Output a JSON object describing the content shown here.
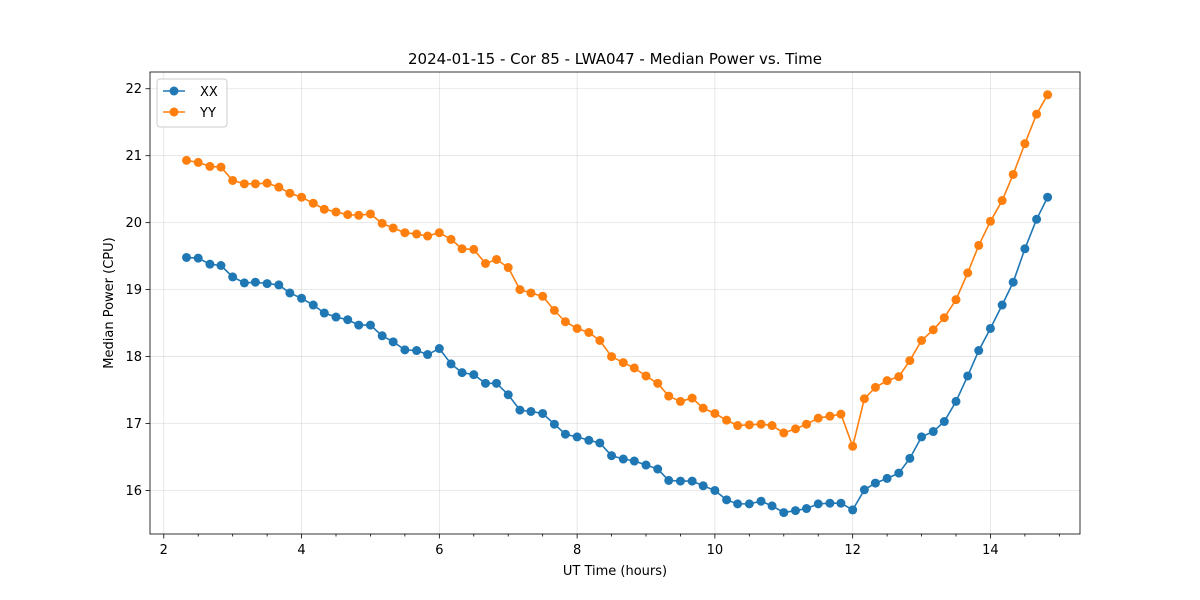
{
  "chart_data": {
    "type": "line",
    "title": "2024-01-15 - Cor 85 - LWA047 - Median Power vs. Time",
    "xlabel": "UT Time (hours)",
    "ylabel": "Median Power (CPU)",
    "xlim": [
      1.8,
      15.3
    ],
    "ylim": [
      15.35,
      22.25
    ],
    "xticks": [
      2,
      4,
      6,
      8,
      10,
      12,
      14
    ],
    "yticks": [
      16,
      17,
      18,
      19,
      20,
      21,
      22
    ],
    "xminor": [
      2.5,
      3,
      3.5,
      4.5,
      5,
      5.5,
      6.5,
      7,
      7.5,
      8.5,
      9,
      9.5,
      10.5,
      11,
      11.5,
      12.5,
      13,
      13.5,
      14.5,
      15
    ],
    "grid": true,
    "legend_position": "top-left",
    "x": [
      2.33,
      2.5,
      2.67,
      2.83,
      3.0,
      3.17,
      3.33,
      3.5,
      3.67,
      3.83,
      4.0,
      4.17,
      4.33,
      4.5,
      4.67,
      4.83,
      5.0,
      5.17,
      5.33,
      5.5,
      5.67,
      5.83,
      6.0,
      6.17,
      6.33,
      6.5,
      6.67,
      6.83,
      7.0,
      7.17,
      7.33,
      7.5,
      7.67,
      7.83,
      8.0,
      8.17,
      8.33,
      8.5,
      8.67,
      8.83,
      9.0,
      9.17,
      9.33,
      9.5,
      9.67,
      9.83,
      10.0,
      10.17,
      10.33,
      10.5,
      10.67,
      10.83,
      11.0,
      11.17,
      11.33,
      11.5,
      11.67,
      11.83,
      12.0,
      12.17,
      12.33,
      12.5,
      12.67,
      12.83,
      13.0,
      13.17,
      13.33,
      13.5,
      13.67,
      13.83,
      14.0,
      14.17,
      14.33,
      14.5,
      14.67,
      14.83
    ],
    "series": [
      {
        "name": "XX",
        "color": "#1f77b4",
        "values": [
          19.48,
          19.47,
          19.38,
          19.36,
          19.19,
          19.1,
          19.11,
          19.09,
          19.07,
          18.95,
          18.87,
          18.77,
          18.65,
          18.59,
          18.55,
          18.47,
          18.47,
          18.31,
          18.22,
          18.1,
          18.09,
          18.03,
          18.12,
          17.89,
          17.76,
          17.73,
          17.6,
          17.6,
          17.43,
          17.2,
          17.18,
          17.15,
          16.99,
          16.84,
          16.8,
          16.75,
          16.71,
          16.52,
          16.47,
          16.44,
          16.38,
          16.32,
          16.15,
          16.14,
          16.14,
          16.07,
          16.0,
          15.86,
          15.8,
          15.8,
          15.84,
          15.77,
          15.67,
          15.7,
          15.73,
          15.8,
          15.81,
          15.81,
          15.71,
          16.01,
          16.11,
          16.18,
          16.26,
          16.48,
          16.8,
          16.88,
          17.03,
          17.33,
          17.71,
          18.09,
          18.42,
          18.77,
          19.11,
          19.61,
          20.05,
          20.38
        ]
      },
      {
        "name": "YY",
        "color": "#ff7f0e",
        "values": [
          20.93,
          20.9,
          20.84,
          20.83,
          20.63,
          20.58,
          20.58,
          20.59,
          20.53,
          20.44,
          20.38,
          20.29,
          20.2,
          20.16,
          20.12,
          20.11,
          20.13,
          19.99,
          19.92,
          19.85,
          19.83,
          19.8,
          19.85,
          19.75,
          19.61,
          19.6,
          19.39,
          19.45,
          19.33,
          19.0,
          18.95,
          18.9,
          18.69,
          18.52,
          18.42,
          18.36,
          18.24,
          18.0,
          17.91,
          17.83,
          17.71,
          17.6,
          17.41,
          17.33,
          17.38,
          17.23,
          17.15,
          17.05,
          16.97,
          16.98,
          16.99,
          16.97,
          16.86,
          16.92,
          16.99,
          17.08,
          17.11,
          17.14,
          16.66,
          17.37,
          17.54,
          17.64,
          17.7,
          17.94,
          18.24,
          18.4,
          18.58,
          18.85,
          19.25,
          19.66,
          20.02,
          20.33,
          20.72,
          21.18,
          21.62,
          21.91
        ]
      }
    ]
  }
}
